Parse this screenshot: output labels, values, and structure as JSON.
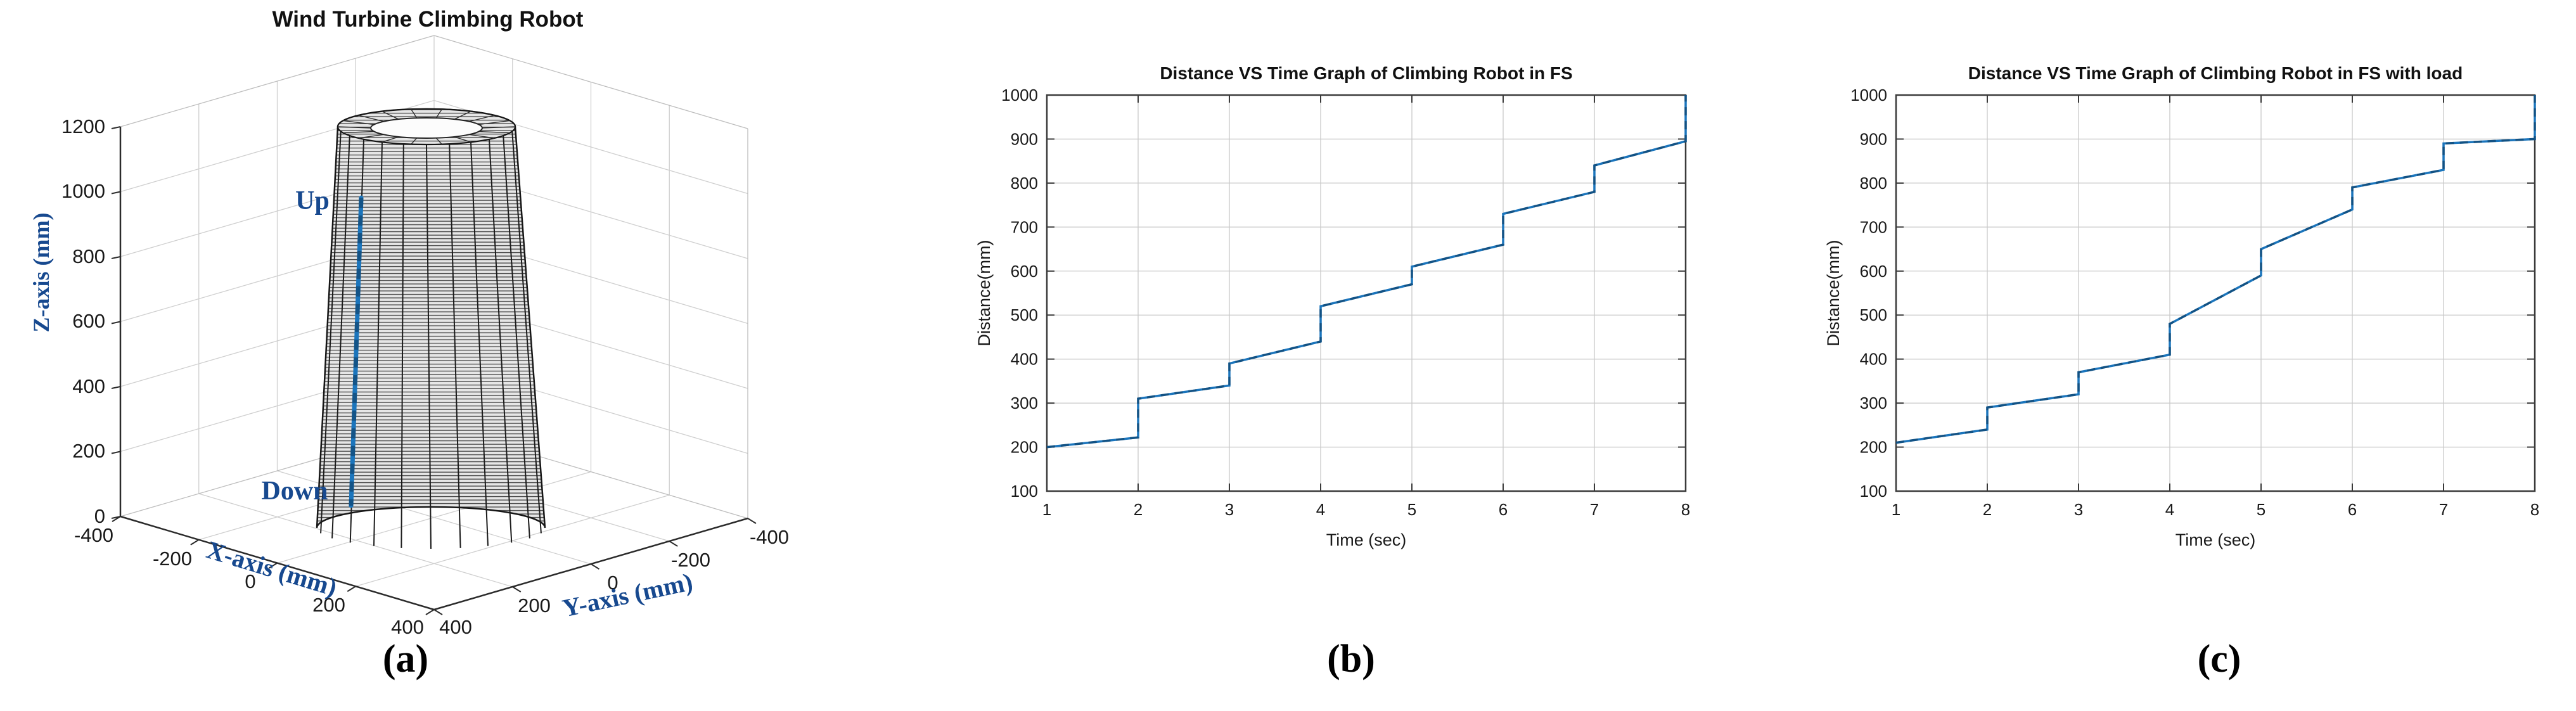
{
  "figure": {
    "captions": {
      "a": "(a)",
      "b": "(b)",
      "c": "(c)"
    }
  },
  "chart_data": [
    {
      "type": "surface-3d",
      "panel": "a",
      "title": "Wind Turbine Climbing Robot",
      "xlabel": "X-axis (mm)",
      "ylabel": "Y-axis (mm)",
      "zlabel": "Z-axis (mm)",
      "xlim": [
        -400,
        400
      ],
      "ylim": [
        -400,
        400
      ],
      "zlim": [
        0,
        1200
      ],
      "x_ticks": [
        -400,
        -200,
        0,
        200,
        400
      ],
      "y_ticks": [
        400,
        200,
        0,
        -200,
        -400
      ],
      "z_ticks": [
        0,
        200,
        400,
        600,
        800,
        1000,
        1200
      ],
      "description": "Wireframe mesh of a tapered wind-turbine tower (truncated cone, wider at the base) centered at X=0, Y=0, rising from Z=0 to Z=1200 mm, with a blue vertical climbing path drawn on the near-left tower surface between the Up and Down annotations",
      "annotations": {
        "up": "Up",
        "down": "Down"
      },
      "grid": true,
      "colors": {
        "axis_label_blue": "#17498f",
        "climb_path_blue": "#1b75bc",
        "mesh_line": "#4e4e4e",
        "mesh_fill": "#e6e6e6"
      }
    },
    {
      "type": "line",
      "panel": "b",
      "title": "Distance VS Time Graph of Climbing Robot in FS",
      "xlabel": "Time (sec)",
      "ylabel": "Distance(mm)",
      "xlim": [
        1,
        8
      ],
      "ylim": [
        100,
        1000
      ],
      "x_ticks": [
        1,
        2,
        3,
        4,
        5,
        6,
        7,
        8
      ],
      "y_ticks": [
        100,
        200,
        300,
        400,
        500,
        600,
        700,
        800,
        900,
        1000
      ],
      "grid": true,
      "legend": null,
      "line_color": "#1b75bc",
      "line_dash_overlay_color": "#0e3a5f",
      "points": [
        [
          1,
          200
        ],
        [
          2,
          222
        ],
        [
          2,
          310
        ],
        [
          3,
          340
        ],
        [
          3,
          390
        ],
        [
          4,
          440
        ],
        [
          4,
          520
        ],
        [
          5,
          570
        ],
        [
          5,
          610
        ],
        [
          6,
          660
        ],
        [
          6,
          730
        ],
        [
          7,
          780
        ],
        [
          7,
          840
        ],
        [
          8,
          895
        ],
        [
          8,
          1000
        ]
      ]
    },
    {
      "type": "line",
      "panel": "c",
      "title": "Distance VS Time Graph of Climbing Robot in FS with load",
      "xlabel": "Time (sec)",
      "ylabel": "Distance(mm)",
      "xlim": [
        1,
        8
      ],
      "ylim": [
        100,
        1000
      ],
      "x_ticks": [
        1,
        2,
        3,
        4,
        5,
        6,
        7,
        8
      ],
      "y_ticks": [
        100,
        200,
        300,
        400,
        500,
        600,
        700,
        800,
        900,
        1000
      ],
      "grid": true,
      "legend": null,
      "line_color": "#1b75bc",
      "line_dash_overlay_color": "#0e3a5f",
      "points": [
        [
          1,
          210
        ],
        [
          2,
          240
        ],
        [
          2,
          290
        ],
        [
          3,
          320
        ],
        [
          3,
          370
        ],
        [
          4,
          410
        ],
        [
          4,
          480
        ],
        [
          5,
          590
        ],
        [
          5,
          650
        ],
        [
          6,
          740
        ],
        [
          6,
          790
        ],
        [
          7,
          830
        ],
        [
          7,
          890
        ],
        [
          8,
          900
        ],
        [
          8,
          1000
        ]
      ]
    }
  ]
}
